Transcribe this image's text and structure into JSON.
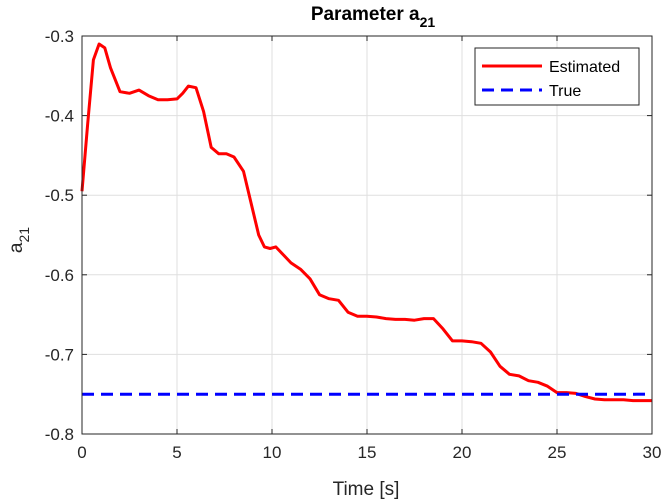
{
  "chart_data": {
    "type": "line",
    "title": {
      "main": "Parameter a",
      "subscript": "21"
    },
    "xlabel": "Time [s]",
    "ylabel": {
      "main": "a",
      "subscript": "21"
    },
    "xlim": [
      0,
      30
    ],
    "ylim": [
      -0.8,
      -0.3
    ],
    "xticks": [
      0,
      5,
      10,
      15,
      20,
      25,
      30
    ],
    "xtick_labels": [
      "0",
      "5",
      "10",
      "15",
      "20",
      "25",
      "30"
    ],
    "yticks": [
      -0.3,
      -0.4,
      -0.5,
      -0.6,
      -0.7,
      -0.8
    ],
    "ytick_labels": [
      "-0.3",
      "-0.4",
      "-0.5",
      "-0.6",
      "-0.7",
      "-0.8"
    ],
    "grid": true,
    "legend_position": "top-right",
    "series": [
      {
        "name": "Estimated",
        "color": "#ff0000",
        "style": "solid",
        "x": [
          0,
          0.3,
          0.6,
          0.9,
          1.2,
          1.5,
          2.0,
          2.5,
          3.0,
          3.5,
          4.0,
          4.5,
          5.0,
          5.3,
          5.6,
          6.0,
          6.4,
          6.8,
          7.2,
          7.6,
          8.0,
          8.5,
          9.0,
          9.3,
          9.6,
          9.9,
          10.2,
          10.6,
          11.0,
          11.5,
          12.0,
          12.5,
          13.0,
          13.5,
          14.0,
          14.5,
          15.0,
          15.5,
          16.0,
          16.5,
          17.0,
          17.5,
          18.0,
          18.5,
          19.0,
          19.5,
          20.0,
          20.5,
          21.0,
          21.5,
          22.0,
          22.5,
          23.0,
          23.5,
          24.0,
          24.5,
          25.0,
          25.5,
          26.0,
          26.5,
          27.0,
          27.5,
          28.0,
          28.5,
          29.0,
          29.5,
          30.0
        ],
        "y": [
          -0.495,
          -0.41,
          -0.33,
          -0.31,
          -0.315,
          -0.34,
          -0.37,
          -0.372,
          -0.368,
          -0.375,
          -0.38,
          -0.38,
          -0.379,
          -0.372,
          -0.363,
          -0.365,
          -0.395,
          -0.44,
          -0.448,
          -0.448,
          -0.452,
          -0.47,
          -0.52,
          -0.55,
          -0.565,
          -0.567,
          -0.565,
          -0.575,
          -0.585,
          -0.593,
          -0.605,
          -0.625,
          -0.63,
          -0.632,
          -0.647,
          -0.652,
          -0.652,
          -0.653,
          -0.655,
          -0.656,
          -0.656,
          -0.657,
          -0.655,
          -0.655,
          -0.668,
          -0.683,
          -0.683,
          -0.684,
          -0.686,
          -0.697,
          -0.715,
          -0.725,
          -0.727,
          -0.733,
          -0.735,
          -0.74,
          -0.748,
          -0.748,
          -0.749,
          -0.753,
          -0.756,
          -0.757,
          -0.757,
          -0.757,
          -0.758,
          -0.758,
          -0.758
        ]
      },
      {
        "name": "True",
        "color": "#0000ff",
        "style": "dashed",
        "x": [
          0,
          30
        ],
        "y": [
          -0.75,
          -0.75
        ]
      }
    ]
  }
}
